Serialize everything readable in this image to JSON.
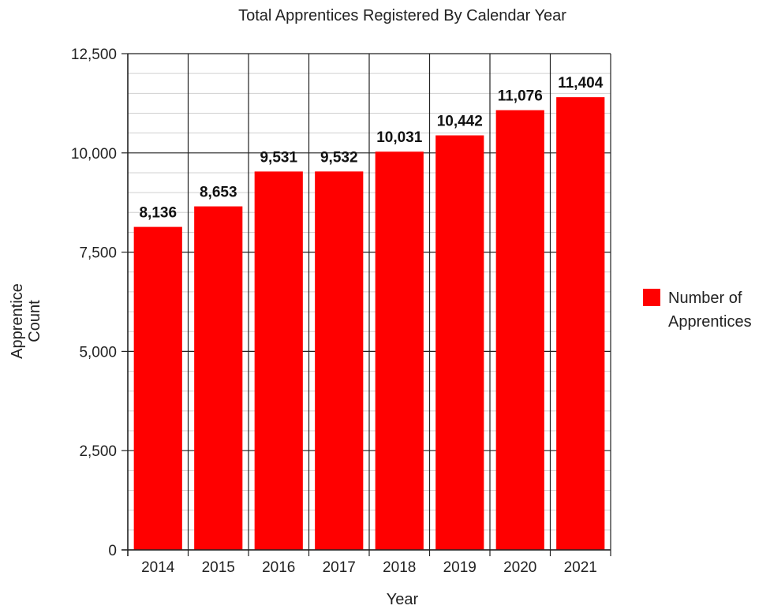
{
  "chart_data": {
    "type": "bar",
    "title": "Total Apprentices Registered By Calendar Year",
    "xlabel": "Year",
    "ylabel_lines": [
      "Apprentice",
      "Count"
    ],
    "categories": [
      "2014",
      "2015",
      "2016",
      "2017",
      "2018",
      "2019",
      "2020",
      "2021"
    ],
    "series": [
      {
        "name": "Number of Apprentices",
        "legend_lines": [
          "Number of",
          "Apprentices"
        ],
        "color": "#ff0000",
        "values": [
          8136,
          8653,
          9531,
          9532,
          10031,
          10442,
          11076,
          11404
        ],
        "value_labels": [
          "8,136",
          "8,653",
          "9,531",
          "9,532",
          "10,031",
          "10,442",
          "11,076",
          "11,404"
        ]
      }
    ],
    "ylim": [
      0,
      12500
    ],
    "yticks": [
      0,
      2500,
      5000,
      7500,
      10000,
      12500
    ],
    "ytick_labels": [
      "0",
      "2,500",
      "5,000",
      "7,500",
      "10,000",
      "12,500"
    ],
    "minor_grid_step": 500,
    "grid": true,
    "legend_position": "right"
  }
}
